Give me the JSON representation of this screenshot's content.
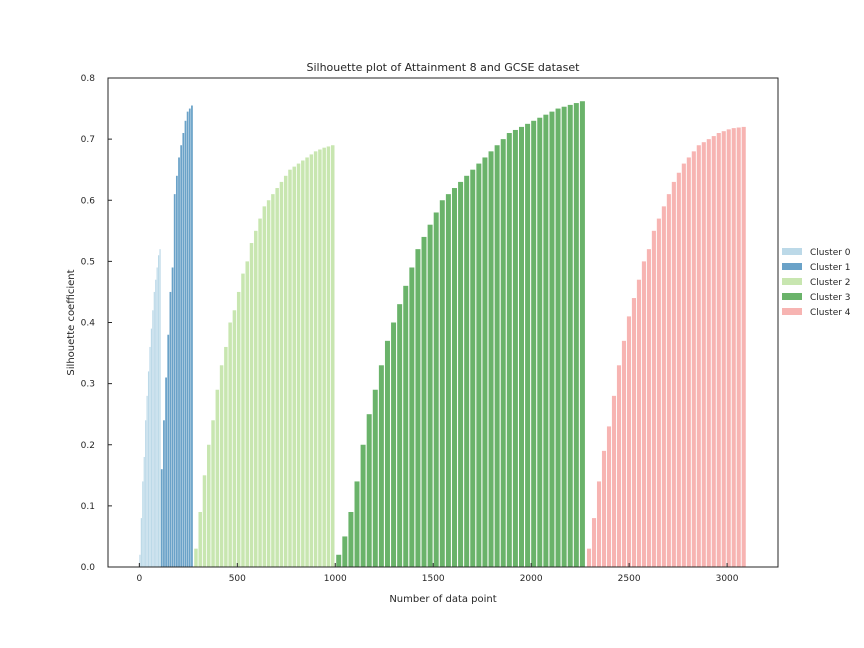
{
  "chart_data": {
    "type": "bar",
    "title": "Silhouette plot of Attainment 8 and GCSE dataset",
    "xlabel": "Number of data point",
    "ylabel": "Silhouette coefficient",
    "xlim": [
      -160,
      3260
    ],
    "ylim": [
      0,
      0.8
    ],
    "xticks": [
      0,
      500,
      1000,
      1500,
      2000,
      2500,
      3000
    ],
    "yticks": [
      0.0,
      0.1,
      0.2,
      0.3,
      0.4,
      0.5,
      0.6,
      0.7,
      0.8
    ],
    "grid": false,
    "legend_position": "right",
    "series": [
      {
        "name": "Cluster 0",
        "color": "#bcd9e8",
        "x_start": 0,
        "x_end": 110,
        "values": [
          0.02,
          0.08,
          0.14,
          0.18,
          0.24,
          0.28,
          0.32,
          0.36,
          0.39,
          0.42,
          0.45,
          0.47,
          0.49,
          0.51,
          0.52
        ]
      },
      {
        "name": "Cluster 1",
        "color": "#6aa2c8",
        "x_start": 110,
        "x_end": 275,
        "values": [
          0.16,
          0.24,
          0.31,
          0.38,
          0.45,
          0.49,
          0.61,
          0.64,
          0.67,
          0.69,
          0.71,
          0.73,
          0.745,
          0.75,
          0.755
        ]
      },
      {
        "name": "Cluster 2",
        "color": "#c8e6b0",
        "x_start": 280,
        "x_end": 1000,
        "values": [
          0.03,
          0.09,
          0.15,
          0.2,
          0.24,
          0.29,
          0.33,
          0.36,
          0.4,
          0.42,
          0.45,
          0.48,
          0.5,
          0.53,
          0.55,
          0.57,
          0.59,
          0.6,
          0.61,
          0.62,
          0.63,
          0.64,
          0.65,
          0.655,
          0.66,
          0.665,
          0.67,
          0.675,
          0.68,
          0.683,
          0.686,
          0.688,
          0.69
        ]
      },
      {
        "name": "Cluster 3",
        "color": "#6ab36a",
        "x_start": 1005,
        "x_end": 2280,
        "values": [
          0.02,
          0.05,
          0.09,
          0.14,
          0.2,
          0.25,
          0.29,
          0.33,
          0.37,
          0.4,
          0.43,
          0.46,
          0.49,
          0.52,
          0.54,
          0.56,
          0.58,
          0.6,
          0.61,
          0.62,
          0.63,
          0.64,
          0.65,
          0.66,
          0.67,
          0.68,
          0.69,
          0.7,
          0.71,
          0.715,
          0.72,
          0.725,
          0.73,
          0.735,
          0.74,
          0.745,
          0.75,
          0.753,
          0.756,
          0.759,
          0.762
        ]
      },
      {
        "name": "Cluster 4",
        "color": "#f7b4b2",
        "x_start": 2285,
        "x_end": 3100,
        "values": [
          0.03,
          0.08,
          0.14,
          0.19,
          0.23,
          0.28,
          0.33,
          0.37,
          0.41,
          0.44,
          0.47,
          0.5,
          0.52,
          0.55,
          0.57,
          0.59,
          0.61,
          0.63,
          0.645,
          0.66,
          0.67,
          0.68,
          0.69,
          0.695,
          0.7,
          0.705,
          0.71,
          0.713,
          0.716,
          0.718,
          0.719,
          0.72
        ]
      }
    ]
  }
}
